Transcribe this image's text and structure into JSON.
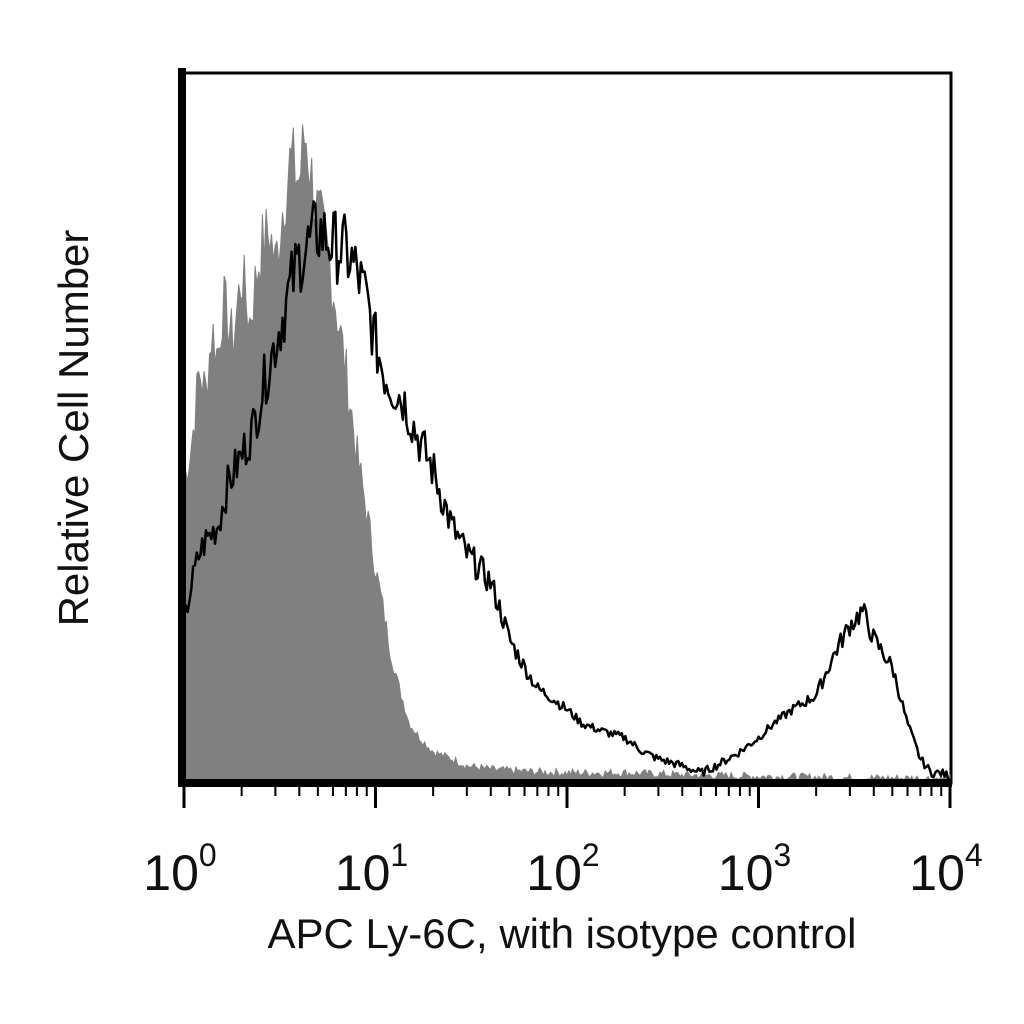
{
  "chart_data": {
    "type": "area",
    "title": "",
    "xlabel": "APC Ly-6C, with isotype control",
    "ylabel": "Relative Cell Number",
    "x_scale": "log",
    "xlim": [
      1,
      10000
    ],
    "ylim": [
      0,
      100
    ],
    "grid": false,
    "x_ticks": [
      {
        "base": "10",
        "exp": "0",
        "value": 1
      },
      {
        "base": "10",
        "exp": "1",
        "value": 10
      },
      {
        "base": "10",
        "exp": "2",
        "value": 100
      },
      {
        "base": "10",
        "exp": "3",
        "value": 1000
      },
      {
        "base": "10",
        "exp": "4",
        "value": 10000
      }
    ],
    "series": [
      {
        "style": "filled",
        "color": "#808080",
        "x": [
          1,
          1.1,
          1.2,
          1.3,
          1.4,
          1.5,
          1.6,
          1.8,
          2.0,
          2.2,
          2.5,
          2.8,
          3.0,
          3.3,
          3.6,
          4.0,
          4.3,
          4.6,
          5.0,
          5.5,
          6.0,
          6.5,
          7.0,
          7.5,
          8.0,
          9.0,
          10,
          11,
          12,
          13,
          15,
          17,
          20,
          25,
          30,
          40,
          60,
          100,
          200,
          400,
          1000,
          3000,
          10000
        ],
        "y": [
          42,
          48,
          58,
          55,
          64,
          60,
          68,
          62,
          72,
          65,
          75,
          78,
          73,
          82,
          88,
          85,
          92,
          86,
          80,
          76,
          70,
          64,
          58,
          52,
          46,
          38,
          30,
          24,
          18,
          14,
          8,
          6,
          4,
          3,
          2,
          1.5,
          1.2,
          1.0,
          1.0,
          0.7,
          0.5,
          0.3,
          0.2
        ]
      },
      {
        "style": "line",
        "color": "#000000",
        "x": [
          1,
          1.1,
          1.2,
          1.3,
          1.5,
          1.7,
          2.0,
          2.3,
          2.6,
          3.0,
          3.3,
          3.6,
          4.0,
          4.5,
          5.0,
          5.5,
          6.0,
          7.0,
          8.0,
          9.0,
          10,
          11,
          12,
          14,
          17,
          20,
          25,
          30,
          35,
          40,
          45,
          50,
          60,
          70,
          80,
          100,
          120,
          150,
          200,
          250,
          300,
          400,
          500,
          600,
          800,
          1000,
          1200,
          1500,
          2000,
          2500,
          3000,
          3500,
          4000,
          5000,
          6000,
          7000,
          8000,
          9000,
          10000
        ],
        "y": [
          22,
          28,
          32,
          34,
          36,
          42,
          46,
          50,
          56,
          62,
          66,
          70,
          74,
          76,
          78,
          77,
          76,
          75,
          72,
          68,
          62,
          58,
          56,
          54,
          48,
          44,
          36,
          32,
          30,
          28,
          24,
          20,
          16,
          13,
          12,
          10,
          8,
          7,
          6,
          4,
          3,
          2,
          1,
          2,
          4,
          6,
          8,
          10,
          12,
          18,
          22,
          24,
          20,
          16,
          8,
          3,
          1,
          1,
          0.5
        ]
      }
    ]
  }
}
